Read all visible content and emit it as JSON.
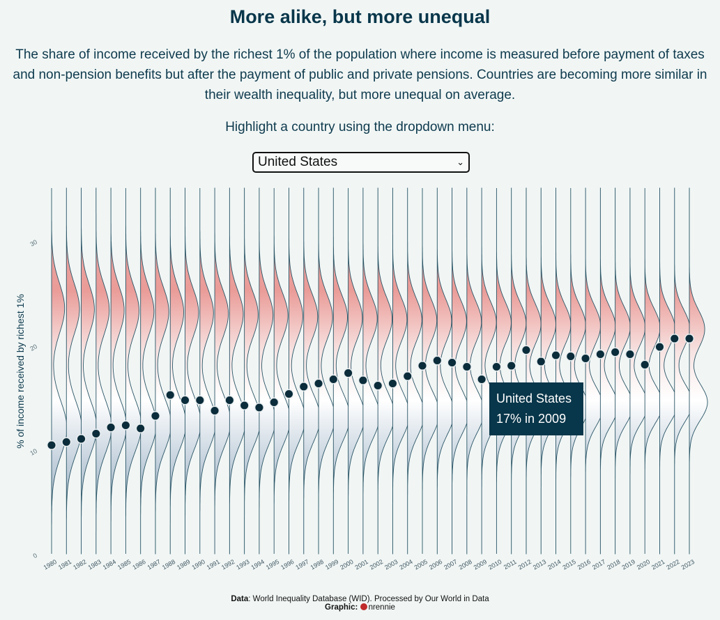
{
  "title": "More alike, but more unequal",
  "subtitle": "The share of income received by the richest 1% of the population where income is measured before payment of taxes and non-pension benefits but after the payment of public and private pensions. Countries are becoming more similar in their wealth inequality, but more unequal on average.",
  "prompt": "Highlight a country using the dropdown menu:",
  "dropdown": {
    "selected": "United States",
    "chevron_icon": "chevron-down-icon"
  },
  "tooltip": {
    "country": "United States",
    "value_text": "17% in 2009"
  },
  "caption": {
    "data_label": "Data",
    "data_text": ": World Inequality Database (WID). Processed by Our World in Data",
    "graphic_label": "Graphic",
    "graphic_sep": ":",
    "github_icon": "github-icon",
    "graphic_author": "nrennie"
  },
  "colors": {
    "high": "#e8a6a4",
    "low": "#7d97ae",
    "mid": "#ffffff",
    "dot": "#0b2c3a",
    "outline": "#2a5566",
    "text": "#0e3a4d",
    "background": "#f1f6f5"
  },
  "chart_data": {
    "type": "scatter",
    "ylabel": "% of income received by richest 1%",
    "ylim": [
      0,
      35
    ],
    "yticks": [
      0,
      10,
      20,
      30
    ],
    "distribution_peaks": [
      12.0,
      23.5
    ],
    "highlighted_series": "United States",
    "x": [
      1980,
      1981,
      1982,
      1983,
      1984,
      1985,
      1986,
      1987,
      1988,
      1989,
      1990,
      1991,
      1992,
      1993,
      1994,
      1995,
      1996,
      1997,
      1998,
      1999,
      2000,
      2001,
      2002,
      2003,
      2004,
      2005,
      2006,
      2007,
      2008,
      2009,
      2010,
      2011,
      2012,
      2013,
      2014,
      2015,
      2016,
      2017,
      2018,
      2019,
      2020,
      2021,
      2022,
      2023
    ],
    "y": [
      10.4,
      10.7,
      11.0,
      11.5,
      12.1,
      12.3,
      12.0,
      13.2,
      15.2,
      14.7,
      14.7,
      13.7,
      14.7,
      14.2,
      14.0,
      14.5,
      15.3,
      16.0,
      16.3,
      16.7,
      17.3,
      16.6,
      16.1,
      16.3,
      17.0,
      18.0,
      18.5,
      18.3,
      17.9,
      16.7,
      17.9,
      18.0,
      19.5,
      18.4,
      19.0,
      18.9,
      18.7,
      19.1,
      19.3,
      19.1,
      18.1,
      19.8,
      20.6,
      20.6
    ]
  }
}
